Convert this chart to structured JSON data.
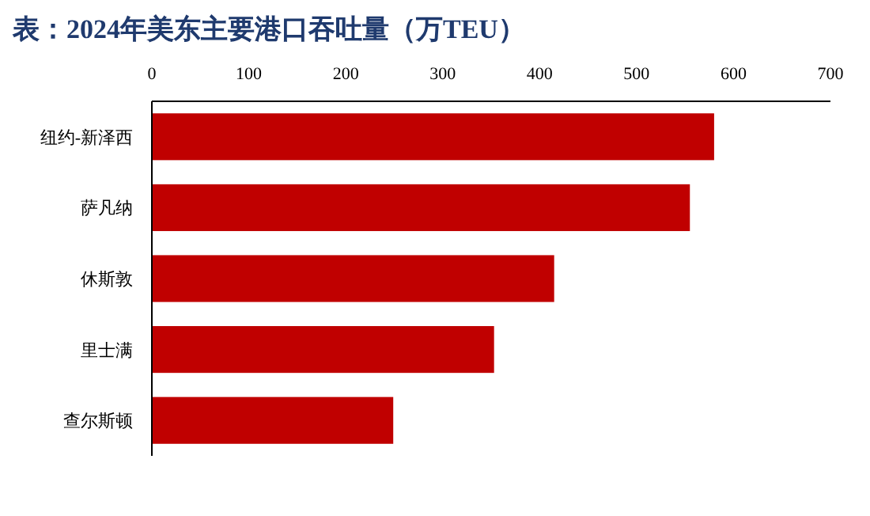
{
  "chart_data": {
    "type": "bar",
    "orientation": "horizontal",
    "title": "表：2024年美东主要港口吞吐量（万TEU）",
    "categories": [
      "纽约-新泽西",
      "萨凡纳",
      "休斯敦",
      "里士满",
      "查尔斯顿"
    ],
    "values": [
      580,
      555,
      415,
      353,
      249
    ],
    "color": "#c00000",
    "xlim": [
      0,
      700
    ],
    "xticks": [
      0,
      100,
      200,
      300,
      400,
      500,
      600,
      700
    ],
    "grid": false
  }
}
